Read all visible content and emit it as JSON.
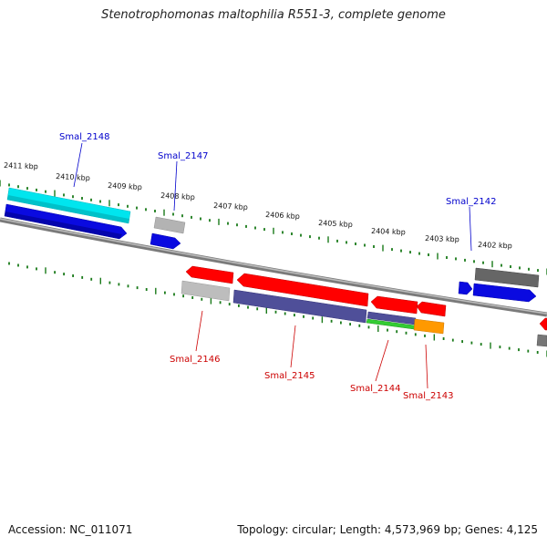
{
  "title": "Stenotrophomonas maltophilia R551-3, complete genome",
  "footer": {
    "accession": "Accession: NC_011071",
    "summary": "Topology: circular; Length: 4,573,969 bp; Genes: 4,125"
  },
  "colors": {
    "backbone": "#808080",
    "tick": "#1a7a1a",
    "forward_label": "#0000cc",
    "reverse_label": "#cc0000"
  },
  "ticks": {
    "labels": [
      "2411 kbp",
      "2410 kbp",
      "2409 kbp",
      "2408 kbp",
      "2407 kbp",
      "2406 kbp",
      "2405 kbp",
      "2404 kbp",
      "2403 kbp",
      "2402 kbp"
    ]
  },
  "genes": [
    {
      "id": "Smal_2148",
      "strand": "forward"
    },
    {
      "id": "Smal_2147",
      "strand": "forward"
    },
    {
      "id": "Smal_2142",
      "strand": "forward"
    },
    {
      "id": "Smal_2146",
      "strand": "reverse"
    },
    {
      "id": "Smal_2145",
      "strand": "reverse"
    },
    {
      "id": "Smal_2144",
      "strand": "reverse"
    },
    {
      "id": "Smal_2143",
      "strand": "reverse"
    }
  ]
}
